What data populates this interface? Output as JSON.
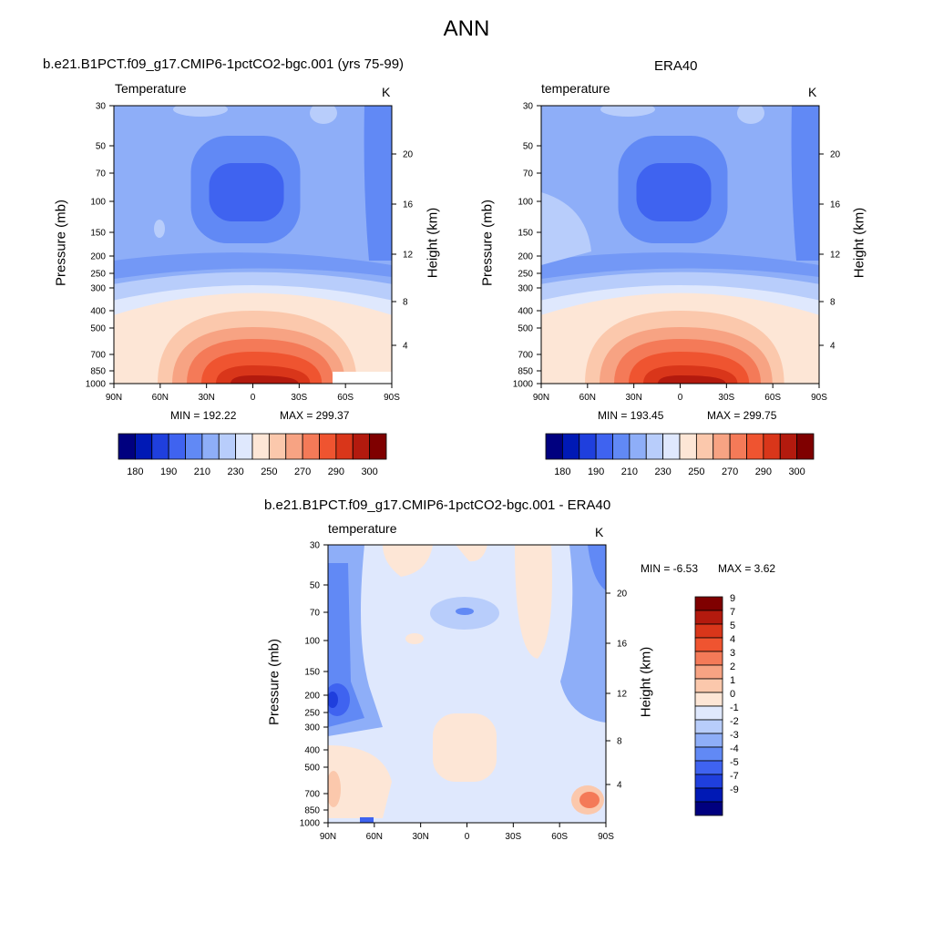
{
  "figure": {
    "title": "ANN",
    "colors": {
      "abs": [
        "#00007f",
        "#0019b5",
        "#1f3fdd",
        "#3f63f0",
        "#6189f5",
        "#8eaef8",
        "#b8cdfb",
        "#dfe8fd",
        "#fde6d6",
        "#fbc8ac",
        "#f7a383",
        "#f47a58",
        "#ef5430",
        "#d9361a",
        "#b31a0e",
        "#7f0000"
      ],
      "diff": [
        "#00007f",
        "#0019b5",
        "#1f3fdd",
        "#3f63f0",
        "#6189f5",
        "#8eaef8",
        "#b8cdfb",
        "#dfe8fd",
        "#fde6d6",
        "#fbc8ac",
        "#f7a383",
        "#f47a58",
        "#ef5430",
        "#d9361a",
        "#b31a0e",
        "#7f0000"
      ]
    }
  },
  "chart_data": [
    {
      "type": "heatmap",
      "title": "b.e21.B1PCT.f09_g17.CMIP6-1pctCO2-bgc.001 (yrs 75-99)",
      "variable": "Temperature",
      "units": "K",
      "ylabel": "Pressure (mb)",
      "ylabel_right": "Height (km)",
      "x_ticks": [
        "90N",
        "60N",
        "30N",
        "0",
        "30S",
        "60S",
        "90S"
      ],
      "y_ticks": [
        "30",
        "50",
        "70",
        "100",
        "150",
        "200",
        "250",
        "300",
        "400",
        "500",
        "700",
        "850",
        "1000"
      ],
      "height_ticks": [
        "20",
        "16",
        "12",
        "8",
        "4"
      ],
      "y_scale": "log",
      "ylim": [
        1000,
        30
      ],
      "min_label": "MIN = 192.22",
      "max_label": "MAX = 299.37",
      "colorbar_levels": [
        "180",
        "190",
        "210",
        "230",
        "250",
        "270",
        "290",
        "300"
      ],
      "colorbar_orientation": "horizontal"
    },
    {
      "type": "heatmap",
      "title": "ERA40",
      "variable": "temperature",
      "units": "K",
      "ylabel": "Pressure (mb)",
      "ylabel_right": "Height (km)",
      "x_ticks": [
        "90N",
        "60N",
        "30N",
        "0",
        "30S",
        "60S",
        "90S"
      ],
      "y_ticks": [
        "30",
        "50",
        "70",
        "100",
        "150",
        "200",
        "250",
        "300",
        "400",
        "500",
        "700",
        "850",
        "1000"
      ],
      "height_ticks": [
        "20",
        "16",
        "12",
        "8",
        "4"
      ],
      "y_scale": "log",
      "ylim": [
        1000,
        30
      ],
      "min_label": "MIN = 193.45",
      "max_label": "MAX = 299.75",
      "colorbar_levels": [
        "180",
        "190",
        "210",
        "230",
        "250",
        "270",
        "290",
        "300"
      ],
      "colorbar_orientation": "horizontal"
    },
    {
      "type": "heatmap",
      "title": "b.e21.B1PCT.f09_g17.CMIP6-1pctCO2-bgc.001 - ERA40",
      "variable": "temperature",
      "units": "K",
      "ylabel": "Pressure (mb)",
      "ylabel_right": "Height (km)",
      "x_ticks": [
        "90N",
        "60N",
        "30N",
        "0",
        "30S",
        "60S",
        "90S"
      ],
      "y_ticks": [
        "30",
        "50",
        "70",
        "100",
        "150",
        "200",
        "250",
        "300",
        "400",
        "500",
        "700",
        "850",
        "1000"
      ],
      "height_ticks": [
        "20",
        "16",
        "12",
        "8",
        "4"
      ],
      "y_scale": "log",
      "ylim": [
        1000,
        30
      ],
      "min_label": "MIN =  -6.53",
      "max_label": "MAX =   3.62",
      "colorbar_levels": [
        "9",
        "7",
        "5",
        "4",
        "3",
        "2",
        "1",
        "0",
        "-1",
        "-2",
        "-3",
        "-4",
        "-5",
        "-7",
        "-9"
      ],
      "colorbar_orientation": "vertical"
    }
  ]
}
